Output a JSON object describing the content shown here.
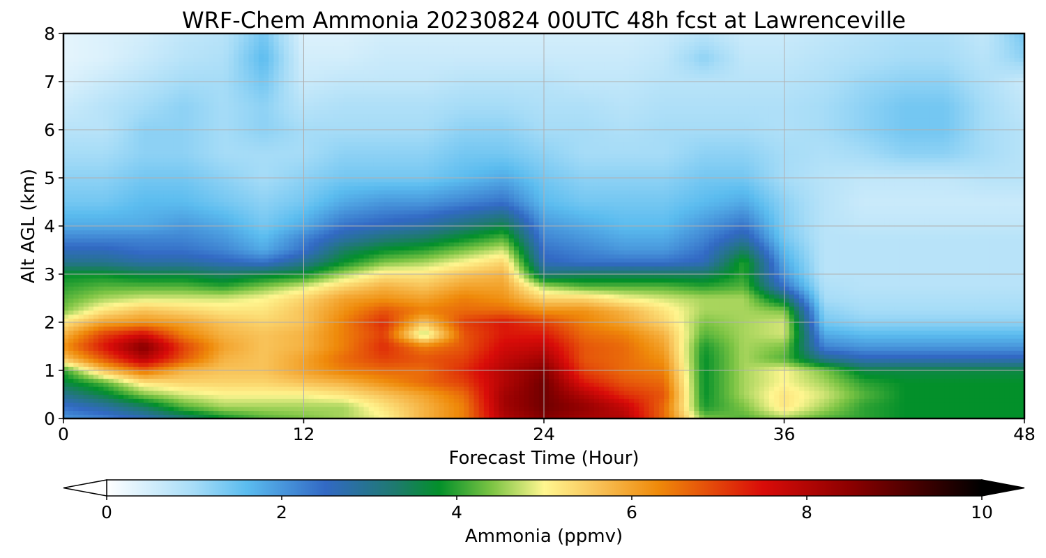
{
  "chart_data": {
    "type": "heatmap",
    "title": "WRF-Chem Ammonia  20230824 00UTC 48h fcst at Lawrenceville",
    "xlabel": "Forecast Time (Hour)",
    "ylabel": "Alt AGL (km)",
    "xlim": [
      0,
      48
    ],
    "ylim": [
      0,
      8
    ],
    "x_ticks": [
      "0",
      "12",
      "24",
      "36",
      "48"
    ],
    "y_ticks": [
      "0",
      "1",
      "2",
      "3",
      "4",
      "5",
      "6",
      "7",
      "8"
    ],
    "grid": true,
    "colorbar": {
      "label": "Ammonia  (ppmv)",
      "min": 0,
      "max": 10,
      "extend": "both",
      "ticks": [
        "0",
        "2",
        "4",
        "6",
        "8",
        "10"
      ],
      "stops": [
        {
          "v": 0.0,
          "c": "#ffffff"
        },
        {
          "v": 1.0,
          "c": "#a6dcf7"
        },
        {
          "v": 1.6,
          "c": "#5bbcef"
        },
        {
          "v": 2.5,
          "c": "#3269c4"
        },
        {
          "v": 3.3,
          "c": "#1e7a6e"
        },
        {
          "v": 3.8,
          "c": "#03902a"
        },
        {
          "v": 4.4,
          "c": "#7cc444"
        },
        {
          "v": 5.0,
          "c": "#fff690"
        },
        {
          "v": 5.6,
          "c": "#f8c359"
        },
        {
          "v": 6.3,
          "c": "#ef8a0a"
        },
        {
          "v": 7.5,
          "c": "#d90c09"
        },
        {
          "v": 8.5,
          "c": "#8c0000"
        },
        {
          "v": 10.0,
          "c": "#000000"
        }
      ]
    },
    "x_hours": [
      0,
      2,
      4,
      6,
      8,
      10,
      12,
      14,
      16,
      18,
      20,
      22,
      24,
      26,
      28,
      30,
      32,
      34,
      36,
      38,
      40,
      42,
      44,
      46,
      48
    ],
    "z_km": [
      0,
      0.25,
      0.5,
      0.75,
      1.0,
      1.25,
      1.5,
      1.75,
      2.0,
      2.25,
      2.5,
      2.75,
      3.0,
      3.25,
      3.5,
      3.75,
      4.0,
      4.5,
      5.0,
      5.5,
      6.0,
      6.5,
      7.0,
      7.5,
      8.0
    ],
    "values": [
      [
        2.0,
        2.2,
        2.6,
        3.2,
        3.8,
        4.2,
        4.4,
        4.6,
        5.0,
        5.8,
        6.4,
        8.0,
        8.6,
        8.2,
        8.0,
        6.6,
        4.4,
        4.2,
        4.6,
        4.2,
        4.0,
        3.8,
        3.8,
        3.8,
        3.8
      ],
      [
        2.4,
        2.8,
        3.4,
        4.2,
        4.6,
        4.6,
        4.6,
        4.6,
        5.2,
        5.8,
        6.4,
        8.2,
        8.8,
        8.4,
        7.8,
        6.6,
        3.9,
        4.4,
        5.2,
        4.6,
        4.0,
        3.8,
        3.8,
        3.8,
        3.8
      ],
      [
        3.0,
        3.6,
        4.4,
        4.8,
        5.0,
        5.0,
        5.0,
        5.2,
        5.6,
        6.0,
        6.6,
        8.2,
        8.8,
        8.0,
        7.2,
        6.8,
        3.8,
        4.6,
        5.2,
        4.8,
        4.2,
        3.8,
        3.8,
        3.8,
        3.8
      ],
      [
        3.6,
        4.2,
        5.2,
        5.4,
        5.4,
        5.4,
        5.6,
        5.8,
        6.2,
        6.6,
        7.0,
        8.0,
        8.8,
        7.4,
        6.8,
        6.6,
        3.8,
        4.6,
        5.0,
        4.6,
        4.0,
        3.8,
        3.8,
        3.8,
        3.8
      ],
      [
        4.0,
        5.6,
        6.6,
        5.8,
        5.6,
        5.6,
        6.0,
        6.4,
        6.6,
        6.6,
        7.2,
        8.0,
        8.6,
        7.0,
        6.6,
        6.4,
        3.8,
        4.6,
        5.0,
        4.4,
        3.6,
        3.6,
        3.6,
        3.6,
        3.6
      ],
      [
        5.6,
        6.8,
        8.0,
        6.8,
        5.8,
        5.6,
        6.0,
        6.6,
        7.0,
        6.8,
        7.0,
        7.8,
        8.2,
        6.8,
        6.6,
        6.2,
        3.8,
        4.6,
        4.2,
        3.0,
        2.6,
        2.6,
        2.6,
        2.6,
        2.6
      ],
      [
        6.2,
        7.4,
        8.6,
        7.0,
        6.0,
        5.6,
        5.8,
        6.4,
        7.2,
        6.4,
        6.8,
        7.6,
        7.8,
        6.8,
        6.6,
        6.0,
        3.9,
        4.6,
        4.4,
        2.2,
        2.0,
        2.0,
        2.0,
        2.0,
        2.0
      ],
      [
        5.8,
        7.0,
        7.6,
        6.4,
        5.8,
        5.6,
        5.8,
        6.4,
        7.0,
        4.6,
        6.8,
        7.4,
        7.4,
        6.6,
        6.4,
        5.8,
        4.2,
        4.6,
        4.8,
        1.8,
        1.6,
        1.6,
        1.6,
        1.6,
        1.6
      ],
      [
        5.2,
        6.0,
        6.2,
        6.0,
        5.6,
        5.4,
        5.6,
        6.4,
        7.2,
        5.6,
        7.0,
        7.4,
        7.0,
        6.4,
        6.0,
        5.4,
        4.4,
        4.6,
        4.8,
        1.4,
        1.2,
        1.2,
        1.2,
        1.2,
        1.2
      ],
      [
        4.4,
        5.2,
        5.6,
        5.4,
        5.2,
        5.2,
        5.6,
        6.2,
        6.8,
        6.4,
        6.6,
        6.6,
        6.2,
        6.2,
        5.8,
        5.2,
        4.6,
        4.6,
        4.4,
        1.2,
        1.0,
        1.0,
        1.0,
        1.0,
        1.0
      ],
      [
        4.2,
        4.6,
        4.8,
        4.8,
        4.8,
        5.0,
        5.4,
        6.0,
        6.2,
        6.0,
        6.4,
        6.2,
        5.4,
        5.4,
        5.0,
        4.8,
        4.6,
        4.6,
        3.4,
        1.0,
        0.9,
        0.9,
        0.9,
        0.9,
        0.9
      ],
      [
        4.0,
        4.2,
        4.2,
        4.2,
        4.0,
        4.4,
        4.8,
        5.4,
        5.8,
        5.6,
        6.0,
        6.0,
        4.6,
        4.2,
        4.2,
        4.2,
        4.0,
        4.2,
        2.4,
        0.9,
        0.8,
        0.8,
        0.8,
        0.8,
        0.8
      ],
      [
        3.8,
        3.8,
        3.6,
        3.6,
        3.4,
        3.6,
        3.8,
        4.6,
        5.2,
        5.2,
        5.6,
        5.8,
        3.2,
        3.4,
        3.4,
        3.4,
        3.4,
        4.0,
        2.0,
        0.8,
        0.8,
        0.8,
        0.8,
        0.8,
        0.8
      ],
      [
        3.0,
        3.0,
        2.8,
        2.8,
        2.6,
        2.4,
        3.0,
        3.8,
        4.4,
        4.6,
        5.0,
        5.4,
        2.6,
        2.4,
        2.4,
        2.4,
        2.6,
        4.0,
        1.8,
        0.8,
        0.8,
        0.8,
        0.8,
        0.8,
        0.8
      ],
      [
        2.6,
        2.6,
        2.4,
        2.4,
        2.2,
        1.8,
        2.4,
        3.4,
        3.8,
        4.0,
        4.4,
        4.8,
        2.4,
        2.2,
        2.0,
        2.0,
        2.4,
        3.4,
        1.6,
        0.8,
        0.8,
        0.8,
        0.8,
        0.8,
        0.8
      ],
      [
        2.2,
        2.2,
        2.2,
        2.2,
        2.0,
        1.6,
        2.2,
        2.8,
        3.2,
        3.4,
        3.8,
        4.2,
        2.2,
        2.0,
        1.8,
        1.8,
        2.2,
        2.8,
        1.4,
        0.8,
        0.8,
        0.8,
        0.8,
        0.8,
        0.8
      ],
      [
        1.8,
        1.8,
        1.8,
        2.0,
        1.8,
        1.4,
        1.8,
        2.4,
        2.6,
        2.8,
        3.2,
        3.6,
        2.0,
        1.8,
        1.6,
        1.6,
        2.0,
        2.4,
        1.3,
        0.8,
        0.7,
        0.7,
        0.7,
        0.7,
        0.7
      ],
      [
        1.4,
        1.4,
        1.6,
        1.6,
        1.4,
        1.2,
        1.4,
        1.8,
        2.0,
        2.0,
        2.2,
        2.4,
        1.6,
        1.4,
        1.4,
        1.4,
        1.6,
        1.8,
        1.2,
        0.8,
        0.6,
        0.6,
        0.6,
        0.6,
        0.6
      ],
      [
        1.2,
        1.2,
        1.4,
        1.4,
        1.2,
        1.0,
        1.2,
        1.4,
        1.4,
        1.4,
        1.6,
        1.8,
        1.4,
        1.2,
        1.2,
        1.2,
        1.4,
        1.4,
        1.0,
        0.8,
        0.7,
        0.7,
        0.7,
        0.8,
        0.8
      ],
      [
        1.0,
        1.0,
        1.2,
        1.2,
        1.0,
        1.0,
        1.0,
        1.2,
        1.2,
        1.2,
        1.4,
        1.4,
        1.2,
        1.0,
        1.0,
        1.0,
        1.2,
        1.2,
        1.0,
        0.9,
        1.0,
        1.2,
        1.2,
        1.0,
        0.8
      ],
      [
        0.8,
        0.8,
        1.2,
        1.2,
        1.0,
        1.2,
        1.0,
        1.0,
        1.0,
        1.0,
        1.2,
        1.2,
        1.0,
        1.0,
        0.9,
        1.0,
        1.0,
        1.0,
        0.9,
        1.0,
        1.2,
        1.4,
        1.4,
        1.0,
        0.8
      ],
      [
        0.6,
        0.8,
        1.0,
        1.2,
        1.0,
        1.2,
        0.8,
        0.9,
        0.9,
        0.9,
        1.0,
        1.0,
        0.9,
        0.9,
        0.8,
        0.9,
        0.9,
        0.9,
        0.9,
        1.0,
        1.2,
        1.4,
        1.4,
        1.0,
        0.7
      ],
      [
        0.4,
        0.6,
        0.8,
        1.0,
        1.0,
        1.4,
        0.6,
        0.7,
        0.7,
        0.7,
        0.8,
        0.8,
        0.8,
        0.7,
        0.7,
        0.8,
        0.8,
        0.8,
        0.8,
        0.9,
        1.1,
        1.2,
        1.2,
        0.9,
        0.6
      ],
      [
        0.3,
        0.4,
        0.6,
        0.8,
        0.9,
        1.6,
        0.5,
        0.5,
        0.6,
        0.6,
        0.6,
        0.6,
        0.6,
        0.6,
        0.6,
        0.7,
        1.2,
        0.7,
        0.7,
        0.8,
        0.9,
        1.0,
        1.0,
        0.8,
        1.2
      ],
      [
        0.3,
        0.4,
        0.5,
        0.7,
        0.8,
        1.4,
        0.4,
        0.4,
        0.5,
        0.5,
        0.5,
        0.5,
        0.5,
        0.5,
        0.5,
        0.6,
        0.8,
        0.6,
        0.6,
        0.7,
        0.8,
        0.9,
        0.9,
        0.7,
        1.4
      ]
    ]
  }
}
